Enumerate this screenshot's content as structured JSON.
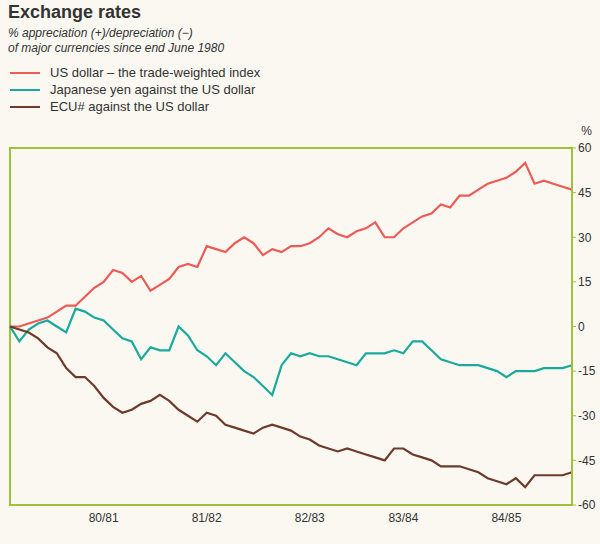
{
  "chart_data": {
    "type": "line",
    "title": "Exchange rates",
    "subtitle": [
      "% appreciation (+)/depreciation (−)",
      "of major currencies since end June 1980"
    ],
    "ylabel": "%",
    "categories": [
      null,
      null,
      null,
      null,
      null,
      null,
      null,
      null,
      null,
      null,
      "80/81",
      null,
      null,
      null,
      null,
      null,
      null,
      null,
      null,
      null,
      null,
      "81/82",
      null,
      null,
      null,
      null,
      null,
      null,
      null,
      null,
      null,
      null,
      "82/83",
      null,
      null,
      null,
      null,
      null,
      null,
      null,
      null,
      null,
      "83/84",
      null,
      null,
      null,
      null,
      null,
      null,
      null,
      null,
      null,
      null,
      "84/85",
      null,
      null,
      null,
      null,
      null,
      null,
      null
    ],
    "series": [
      {
        "name": "US dollar – the trade-weighted index",
        "color": "#ee5a55",
        "values": [
          0,
          0,
          1,
          2,
          3,
          5,
          7,
          7,
          10,
          13,
          15,
          19,
          18,
          15,
          17,
          12,
          14,
          16,
          20,
          21,
          20,
          27,
          26,
          25,
          28,
          30,
          28,
          24,
          26,
          25,
          27,
          27,
          28,
          30,
          33,
          31,
          30,
          32,
          33,
          35,
          30,
          30,
          33,
          35,
          37,
          38,
          41,
          40,
          44,
          44,
          46,
          48,
          49,
          50,
          52,
          55,
          48,
          49,
          48,
          47,
          46
        ]
      },
      {
        "name": "Japanese yen against the US dollar",
        "color": "#1ba99b",
        "values": [
          0,
          -5,
          -1,
          1,
          2,
          0,
          -2,
          6,
          5,
          3,
          2,
          -1,
          -4,
          -5,
          -11,
          -7,
          -8,
          -8,
          0,
          -3,
          -8,
          -10,
          -13,
          -9,
          -12,
          -15,
          -17,
          -20,
          -23,
          -13,
          -9,
          -10,
          -9,
          -10,
          -10,
          -11,
          -12,
          -13,
          -9,
          -9,
          -9,
          -8,
          -9,
          -5,
          -5,
          -8,
          -11,
          -12,
          -13,
          -13,
          -13,
          -14,
          -15,
          -17,
          -15,
          -15,
          -15,
          -14,
          -14,
          -14,
          -13
        ]
      },
      {
        "name": "ECU# against the US dollar",
        "color": "#6e3a2b",
        "values": [
          0,
          -1,
          -2,
          -4,
          -7,
          -9,
          -14,
          -17,
          -17,
          -20,
          -24,
          -27,
          -29,
          -28,
          -26,
          -25,
          -23,
          -25,
          -28,
          -30,
          -32,
          -29,
          -30,
          -33,
          -34,
          -35,
          -36,
          -34,
          -33,
          -34,
          -35,
          -37,
          -38,
          -40,
          -41,
          -42,
          -41,
          -42,
          -43,
          -44,
          -45,
          -41,
          -41,
          -43,
          -44,
          -45,
          -47,
          -47,
          -47,
          -48,
          -49,
          -51,
          -52,
          -53,
          -51,
          -54,
          -50,
          -50,
          -50,
          -50,
          -49
        ]
      }
    ],
    "ylim": [
      -60,
      60
    ],
    "yticks": [
      -60,
      -45,
      -30,
      -15,
      0,
      15,
      30,
      45,
      60
    ],
    "grid": false,
    "legend": "top"
  }
}
